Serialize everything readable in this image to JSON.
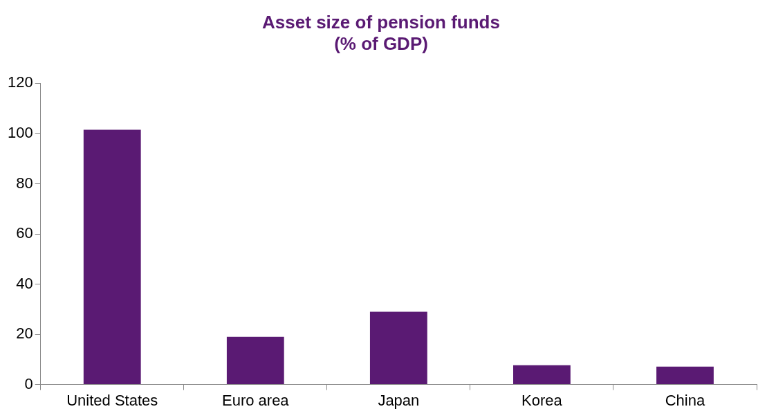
{
  "chart_data": {
    "type": "bar",
    "title": [
      "Asset size of pension funds",
      "(% of GDP)"
    ],
    "categories": [
      "United States",
      "Euro area",
      "Japan",
      "Korea",
      "China"
    ],
    "values": [
      101.5,
      19,
      29,
      7.7,
      7.1
    ],
    "color": "#5a1a73",
    "ylim": [
      0,
      120
    ],
    "yticks": [
      0,
      20,
      40,
      60,
      80,
      100,
      120
    ],
    "grid": false,
    "legend": false
  }
}
